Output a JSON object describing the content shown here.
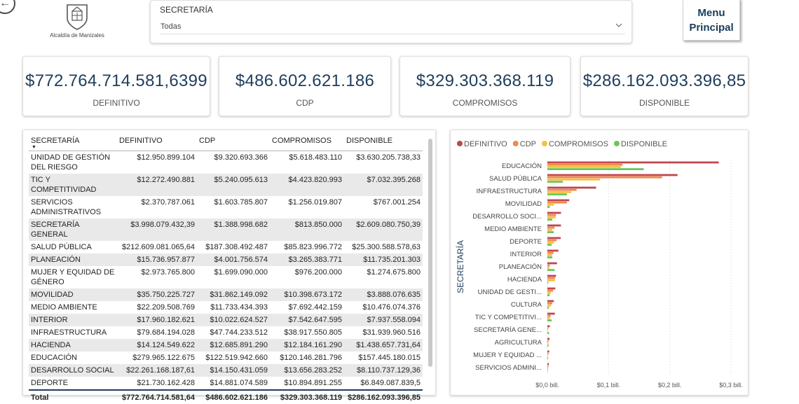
{
  "header": {
    "logo_text": "Alcaldía de Manizales",
    "slicer": {
      "title": "SECRETARÍA",
      "value": "Todas"
    },
    "menu_button": {
      "line1": "Menu",
      "line2": "Principal"
    }
  },
  "kpis": [
    {
      "value": "$772.764.714.581,6399",
      "label": "DEFINITIVO"
    },
    {
      "value": "$486.602.621.186",
      "label": "CDP"
    },
    {
      "value": "$329.303.368.119",
      "label": "COMPROMISOS"
    },
    {
      "value": "$286.162.093.396,85",
      "label": "DISPONIBLE"
    }
  ],
  "table": {
    "columns": [
      "SECRETARÍA",
      "DEFINITIVO",
      "CDP",
      "COMPROMISOS",
      "DISPONIBLE"
    ],
    "rows": [
      [
        "UNIDAD DE GESTIÓN DEL RIESGO",
        "$12.950.899.104",
        "$9.320.693.366",
        "$5.618.483.110",
        "$3.630.205.738,33"
      ],
      [
        "TIC Y COMPETITIVIDAD",
        "$12.272.490.881",
        "$5.240.095.613",
        "$4.423.820.993",
        "$7.032.395.268"
      ],
      [
        "SERVICIOS ADMINISTRATIVOS",
        "$2.370.787.061",
        "$1.603.785.807",
        "$1.256.019.807",
        "$767.001.254"
      ],
      [
        "SECRETARÍA GENERAL",
        "$3.998.079.432,39",
        "$1.388.998.682",
        "$813.850.000",
        "$2.609.080.750,39"
      ],
      [
        "SALUD PÚBLICA",
        "$212.609.081.065,64",
        "$187.308.492.487",
        "$85.823.996.772",
        "$25.300.588.578,63"
      ],
      [
        "PLANEACIÓN",
        "$15.736.957.877",
        "$4.001.756.574",
        "$3.265.383.771",
        "$11.735.201.303"
      ],
      [
        "MUJER Y EQUIDAD DE GÉNERO",
        "$2.973.765.800",
        "$1.699.090.000",
        "$976.200.000",
        "$1.274.675.800"
      ],
      [
        "MOVILIDAD",
        "$35.750.225.727",
        "$31.862.149.092",
        "$10.398.673.172",
        "$3.888.076.635"
      ],
      [
        "MEDIO AMBIENTE",
        "$22.209.508.769",
        "$11.733.434.393",
        "$7.692.442.159",
        "$10.476.074.376"
      ],
      [
        "INTERIOR",
        "$17.960.182.621",
        "$10.022.624.527",
        "$7.542.647.595",
        "$7.937.558.094"
      ],
      [
        "INFRAESTRUCTURA",
        "$79.684.194.028",
        "$47.744.233.512",
        "$38.917.550.805",
        "$31.939.960.516"
      ],
      [
        "HACIENDA",
        "$14.124.549.622",
        "$12.685.891.290",
        "$12.184.161.290",
        "$1.438.657.731,64"
      ],
      [
        "EDUCACIÓN",
        "$279.965.122.675",
        "$122.519.942.660",
        "$120.146.281.796",
        "$157.445.180.015"
      ],
      [
        "DESARROLLO SOCIAL",
        "$22.261.168.187,61",
        "$14.150.431.059",
        "$13.656.283.252",
        "$8.110.737.129,36"
      ],
      [
        "DEPORTE",
        "$21.730.162.428",
        "$14.881.074.589",
        "$10.894.891.255",
        "$6.849.087.839,5"
      ]
    ],
    "total": [
      "Total",
      "$772.764.714.581,64",
      "$486.602.621.186",
      "$329.303.368.119",
      "$286.162.093.396,85"
    ]
  },
  "chart_data": {
    "type": "bar",
    "orientation": "horizontal",
    "ylabel": "SECRETARÍA",
    "categories": [
      "EDUCACIÓN",
      "SALUD PÚBLICA",
      "INFRAESTRUCTURA",
      "MOVILIDAD",
      "DESARROLLO SOCI...",
      "MEDIO AMBIENTE",
      "DEPORTE",
      "INTERIOR",
      "PLANEACIÓN",
      "HACIENDA",
      "UNIDAD DE GESTI...",
      "CULTURA",
      "TIC Y COMPETITIVI...",
      "SECRETARÍA GENE...",
      "AGRICULTURA",
      "MUJER Y EQUIDAD ...",
      "SERVICIOS ADMINI..."
    ],
    "series": [
      {
        "name": "DEFINITIVO",
        "color": "#c0474d",
        "values": [
          279965122675,
          212609081065.64,
          79684194028,
          35750225727,
          22261168187.61,
          22209508769,
          21730162428,
          17960182621,
          15736957877,
          14124549622,
          12950899104,
          10500000000,
          12272490881,
          3998079432.39,
          3500000000,
          2973765800,
          2370787061
        ]
      },
      {
        "name": "CDP",
        "color": "#f0894f",
        "values": [
          122519942660,
          187308492487,
          47744233512,
          31862149092,
          14150431059,
          11733434393,
          14881074589,
          10022624527,
          4001756574,
          12685891290,
          9320693366,
          8000000000,
          5240095613,
          1388998682,
          2000000000,
          1699090000,
          1603785807
        ]
      },
      {
        "name": "COMPROMISOS",
        "color": "#f5c142",
        "values": [
          120146281796,
          85823996772,
          38917550805,
          10398673172,
          13656283252,
          7692442159,
          10894891255,
          7542647595,
          3265383771,
          12184161290,
          5618483110,
          6000000000,
          4423820993,
          813850000,
          1500000000,
          976200000,
          1256019807
        ]
      },
      {
        "name": "DISPONIBLE",
        "color": "#6cc65a",
        "values": [
          157445180015,
          25300588578.63,
          31939960516,
          3888076635,
          8110737129.36,
          10476074376,
          6849087839.5,
          7937558094,
          11735201303,
          1438657731.64,
          3630205738.33,
          2500000000,
          7032395268,
          2609080750.39,
          2000000000,
          1274675800,
          767001254
        ]
      }
    ],
    "xlim": [
      0,
      300000000000
    ],
    "xticks": [
      {
        "value": 0,
        "label": "$0,0 bill."
      },
      {
        "value": 100000000000,
        "label": "$0,1 bill."
      },
      {
        "value": 200000000000,
        "label": "$0,2 bill."
      },
      {
        "value": 300000000000,
        "label": "$0,3 bill."
      }
    ],
    "legend_position": "top-left",
    "grid": true
  }
}
